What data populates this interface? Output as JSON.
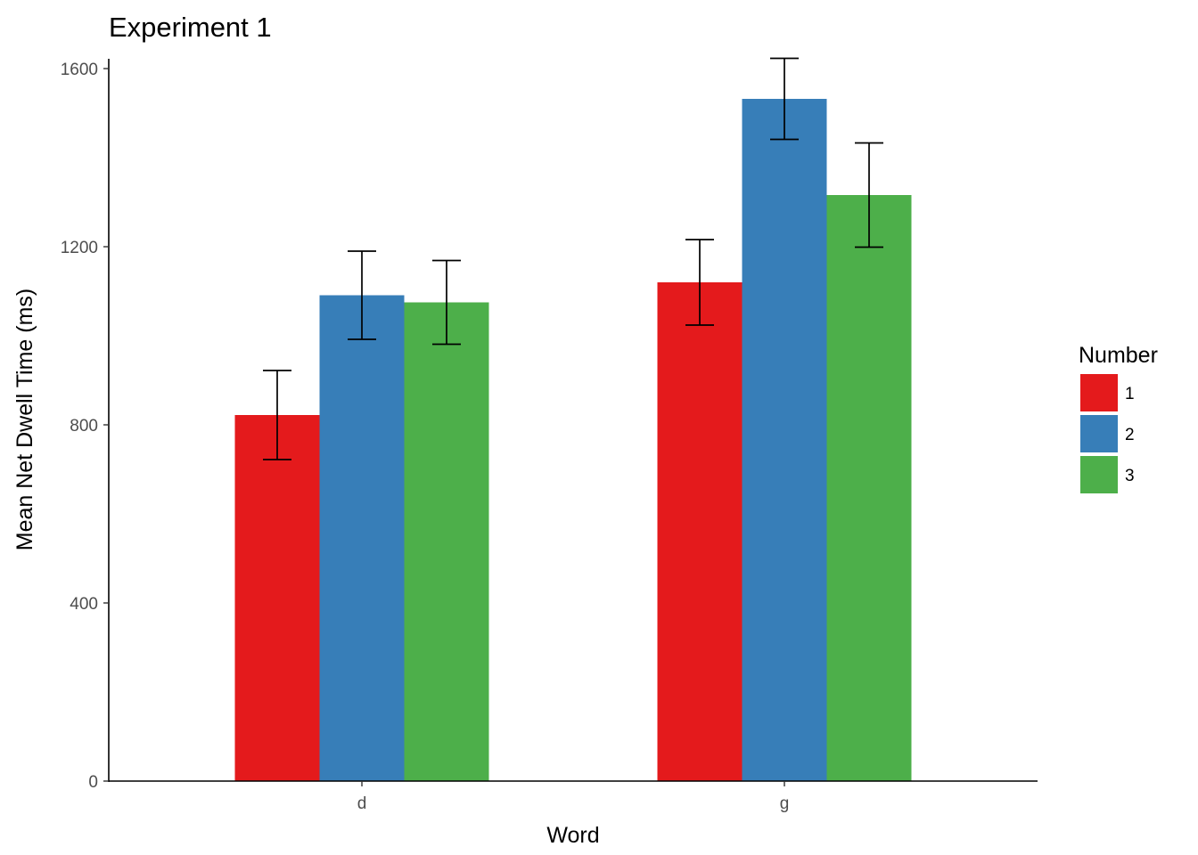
{
  "chart_data": {
    "type": "bar",
    "title": "Experiment 1",
    "xlabel": "Word",
    "ylabel": "Mean Net Dwell Time (ms)",
    "categories": [
      "d",
      "g"
    ],
    "ylim": [
      0,
      1600
    ],
    "yticks": [
      0,
      400,
      800,
      1200,
      1600
    ],
    "legend": {
      "title": "Number",
      "position": "right"
    },
    "series": [
      {
        "name": "1",
        "color": "#E41A1C",
        "values": [
          822,
          1120
        ],
        "errors": [
          100,
          96
        ]
      },
      {
        "name": "2",
        "color": "#377EB8",
        "values": [
          1091,
          1532
        ],
        "errors": [
          99,
          91
        ]
      },
      {
        "name": "3",
        "color": "#4DAF4A",
        "values": [
          1075,
          1316
        ],
        "errors": [
          94,
          117
        ]
      }
    ]
  }
}
